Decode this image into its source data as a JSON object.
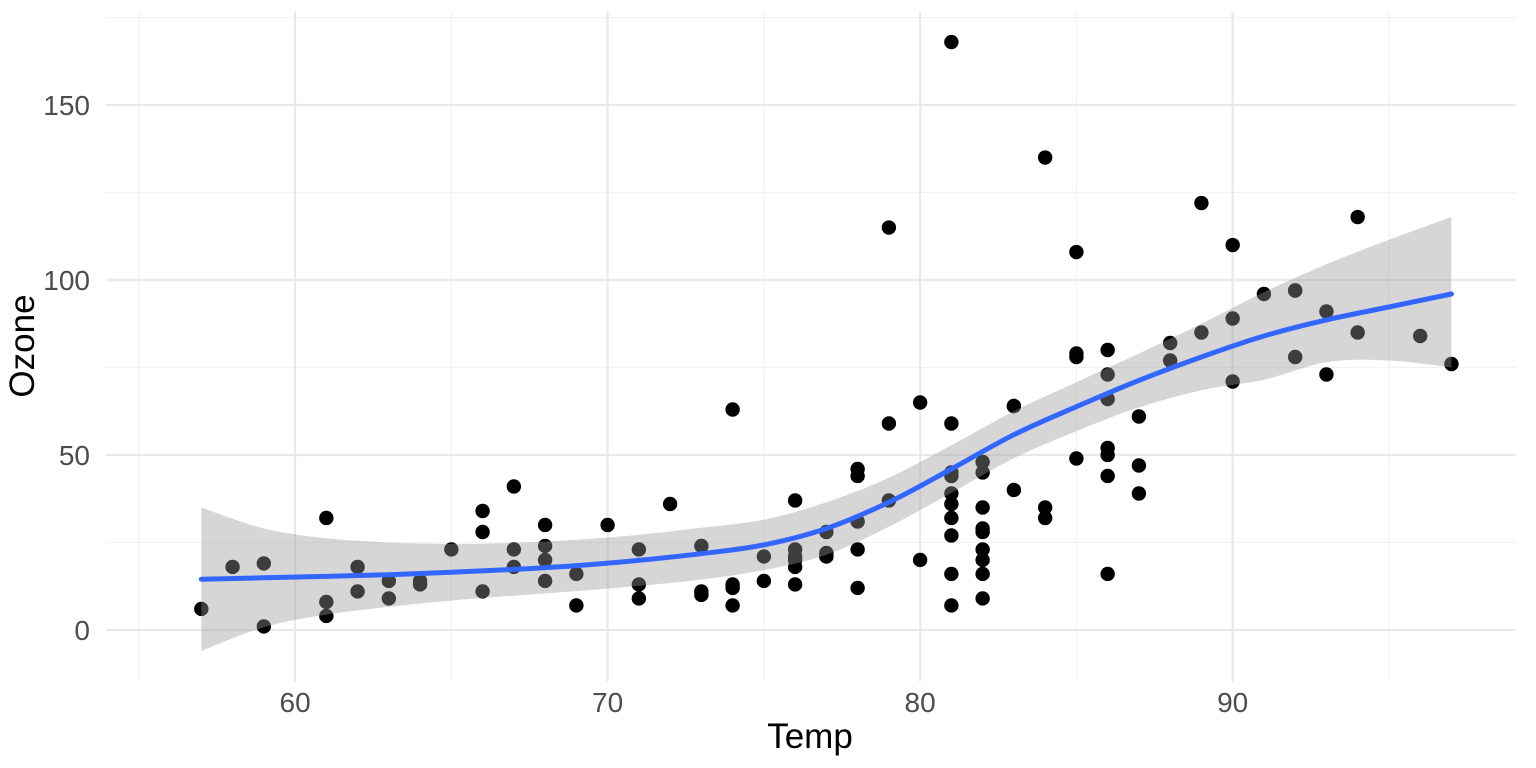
{
  "chart_data": {
    "type": "scatter",
    "title": "",
    "xlabel": "Temp",
    "ylabel": "Ozone",
    "xlim": [
      53.95,
      99.05
    ],
    "ylim": [
      -14.7,
      176.7
    ],
    "x_major_ticks": [
      60,
      70,
      80,
      90
    ],
    "x_minor_ticks": [
      55,
      65,
      75,
      85,
      95
    ],
    "y_major_ticks": [
      0,
      50,
      100,
      150
    ],
    "y_minor_ticks": [
      25,
      75,
      125,
      175
    ],
    "grid": "on",
    "legend": "none",
    "points_temp_ozone": [
      [
        67,
        41
      ],
      [
        72,
        36
      ],
      [
        74,
        12
      ],
      [
        62,
        18
      ],
      [
        66,
        28
      ],
      [
        65,
        23
      ],
      [
        59,
        19
      ],
      [
        61,
        8
      ],
      [
        74,
        7
      ],
      [
        69,
        16
      ],
      [
        66,
        11
      ],
      [
        68,
        14
      ],
      [
        58,
        18
      ],
      [
        64,
        14
      ],
      [
        66,
        34
      ],
      [
        57,
        6
      ],
      [
        68,
        30
      ],
      [
        62,
        11
      ],
      [
        59,
        1
      ],
      [
        73,
        11
      ],
      [
        61,
        4
      ],
      [
        61,
        32
      ],
      [
        67,
        23
      ],
      [
        81,
        45
      ],
      [
        79,
        115
      ],
      [
        76,
        37
      ],
      [
        82,
        29
      ],
      [
        90,
        71
      ],
      [
        87,
        39
      ],
      [
        82,
        23
      ],
      [
        77,
        21
      ],
      [
        79,
        37
      ],
      [
        76,
        20
      ],
      [
        78,
        12
      ],
      [
        74,
        13
      ],
      [
        84,
        135
      ],
      [
        85,
        49
      ],
      [
        81,
        32
      ],
      [
        83,
        64
      ],
      [
        83,
        40
      ],
      [
        88,
        77
      ],
      [
        92,
        97
      ],
      [
        92,
        97
      ],
      [
        89,
        85
      ],
      [
        73,
        10
      ],
      [
        81,
        27
      ],
      [
        81,
        7
      ],
      [
        82,
        48
      ],
      [
        84,
        35
      ],
      [
        87,
        61
      ],
      [
        85,
        79
      ],
      [
        74,
        63
      ],
      [
        81,
        16
      ],
      [
        86,
        80
      ],
      [
        85,
        108
      ],
      [
        82,
        20
      ],
      [
        86,
        52
      ],
      [
        88,
        82
      ],
      [
        86,
        50
      ],
      [
        83,
        64
      ],
      [
        81,
        59
      ],
      [
        81,
        39
      ],
      [
        82,
        9
      ],
      [
        86,
        16
      ],
      [
        85,
        78
      ],
      [
        82,
        35
      ],
      [
        86,
        66
      ],
      [
        89,
        122
      ],
      [
        90,
        89
      ],
      [
        90,
        110
      ],
      [
        86,
        44
      ],
      [
        82,
        28
      ],
      [
        80,
        65
      ],
      [
        77,
        22
      ],
      [
        79,
        59
      ],
      [
        76,
        23
      ],
      [
        78,
        31
      ],
      [
        78,
        44
      ],
      [
        77,
        21
      ],
      [
        63,
        9
      ],
      [
        82,
        45
      ],
      [
        81,
        168
      ],
      [
        86,
        73
      ],
      [
        97,
        76
      ],
      [
        94,
        118
      ],
      [
        96,
        84
      ],
      [
        94,
        85
      ],
      [
        91,
        96
      ],
      [
        92,
        78
      ],
      [
        93,
        73
      ],
      [
        93,
        91
      ],
      [
        87,
        47
      ],
      [
        84,
        32
      ],
      [
        80,
        20
      ],
      [
        78,
        23
      ],
      [
        75,
        21
      ],
      [
        73,
        24
      ],
      [
        81,
        44
      ],
      [
        76,
        21
      ],
      [
        77,
        28
      ],
      [
        71,
        9
      ],
      [
        71,
        13
      ],
      [
        78,
        46
      ],
      [
        67,
        18
      ],
      [
        76,
        13
      ],
      [
        68,
        24
      ],
      [
        82,
        16
      ],
      [
        64,
        13
      ],
      [
        71,
        23
      ],
      [
        81,
        36
      ],
      [
        69,
        7
      ],
      [
        63,
        14
      ],
      [
        70,
        30
      ],
      [
        75,
        14
      ],
      [
        76,
        18
      ],
      [
        68,
        20
      ]
    ],
    "smooth": {
      "method": "loess",
      "temp": [
        57,
        59,
        61,
        63,
        65,
        67,
        69,
        71,
        73,
        75,
        77,
        79,
        81,
        83,
        85,
        87,
        89,
        91,
        93,
        95,
        97
      ],
      "fit": [
        14.5,
        14.9,
        15.3,
        15.8,
        16.5,
        17.3,
        18.4,
        19.9,
        21.8,
        24.3,
        29.0,
        36.5,
        46.0,
        55.8,
        63.8,
        71.3,
        78.0,
        84.0,
        88.6,
        92.3,
        96.0
      ],
      "upper": [
        35.0,
        29.0,
        26.2,
        25.0,
        24.6,
        24.9,
        25.8,
        27.2,
        29.2,
        31.5,
        36.5,
        43.5,
        52.8,
        62.5,
        70.8,
        79.0,
        87.5,
        96.5,
        104.5,
        111.5,
        118.0
      ],
      "lower": [
        -6.0,
        0.8,
        4.4,
        6.6,
        8.4,
        9.8,
        11.1,
        12.6,
        14.4,
        17.1,
        21.5,
        29.5,
        39.2,
        49.1,
        56.8,
        63.6,
        68.5,
        71.5,
        76.5,
        77.0,
        75.0
      ]
    },
    "colors": {
      "point": "#000000",
      "smooth_line": "#3366FF",
      "ribbon_fill": "#999999",
      "ribbon_alpha": 0.4,
      "grid_major": "#E9E9E9",
      "grid_minor": "#F2F2F2",
      "tick_text": "#4D4D4D",
      "title_text": "#000000",
      "background": "#FFFFFF"
    }
  }
}
